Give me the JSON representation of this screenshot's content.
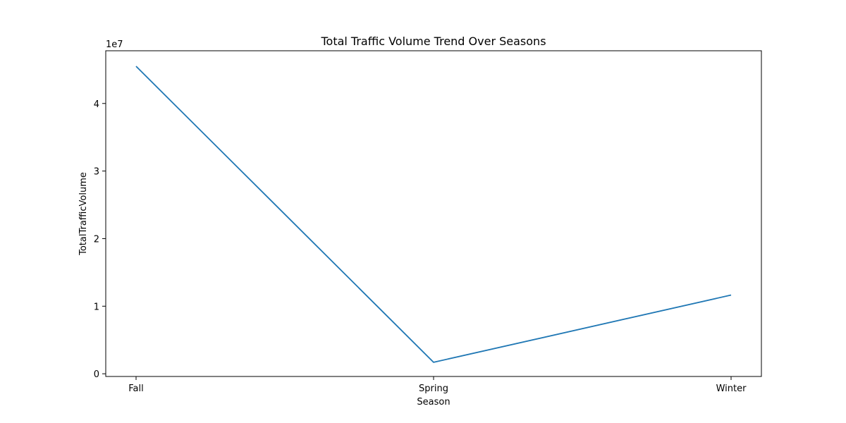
{
  "chart_data": {
    "type": "line",
    "title": "Total Traffic Volume Trend Over Seasons",
    "xlabel": "Season",
    "ylabel": "TotalTrafficVolume",
    "offset_text": "1e7",
    "categories": [
      "Fall",
      "Spring",
      "Winter"
    ],
    "series": [
      {
        "values": [
          45500000,
          1700000,
          11650000
        ]
      }
    ],
    "yticks": [
      0,
      10000000,
      20000000,
      30000000,
      40000000
    ],
    "ytick_labels": [
      "0",
      "1",
      "2",
      "3",
      "4"
    ],
    "ylim": [
      -400000,
      47800000
    ],
    "grid": false,
    "legend": "none",
    "colors": {
      "line": "#1f77b4",
      "axes": "#000000",
      "background": "#ffffff"
    }
  }
}
